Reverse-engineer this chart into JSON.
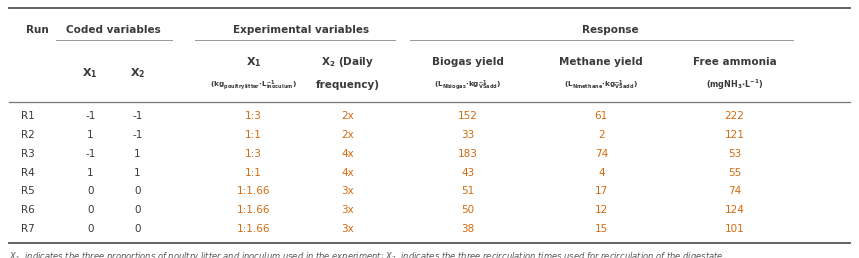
{
  "rows": [
    {
      "run": "R1",
      "x1c": "-1",
      "x2c": "-1",
      "x1e": "1:3",
      "x2e": "2x",
      "biogas": "152",
      "methane": "61",
      "ammonia": "222"
    },
    {
      "run": "R2",
      "x1c": "1",
      "x2c": "-1",
      "x1e": "1:1",
      "x2e": "2x",
      "biogas": "33",
      "methane": "2",
      "ammonia": "121"
    },
    {
      "run": "R3",
      "x1c": "-1",
      "x2c": "1",
      "x1e": "1:3",
      "x2e": "4x",
      "biogas": "183",
      "methane": "74",
      "ammonia": "53"
    },
    {
      "run": "R4",
      "x1c": "1",
      "x2c": "1",
      "x1e": "1:1",
      "x2e": "4x",
      "biogas": "43",
      "methane": "4",
      "ammonia": "55"
    },
    {
      "run": "R5",
      "x1c": "0",
      "x2c": "0",
      "x1e": "1:1.66",
      "x2e": "3x",
      "biogas": "51",
      "methane": "17",
      "ammonia": "74"
    },
    {
      "run": "R6",
      "x1c": "0",
      "x2c": "0",
      "x1e": "1:1.66",
      "x2e": "3x",
      "biogas": "50",
      "methane": "12",
      "ammonia": "124"
    },
    {
      "run": "R7",
      "x1c": "0",
      "x2c": "0",
      "x1e": "1:1.66",
      "x2e": "3x",
      "biogas": "38",
      "methane": "15",
      "ammonia": "101"
    }
  ],
  "colors": {
    "header_text": "#3a3a3a",
    "data_orange": "#d46a10",
    "line_dark": "#555555",
    "line_light": "#999999",
    "bg": "#ffffff",
    "footnote_color": "#555555"
  },
  "figsize": [
    8.59,
    2.58
  ],
  "dpi": 100
}
